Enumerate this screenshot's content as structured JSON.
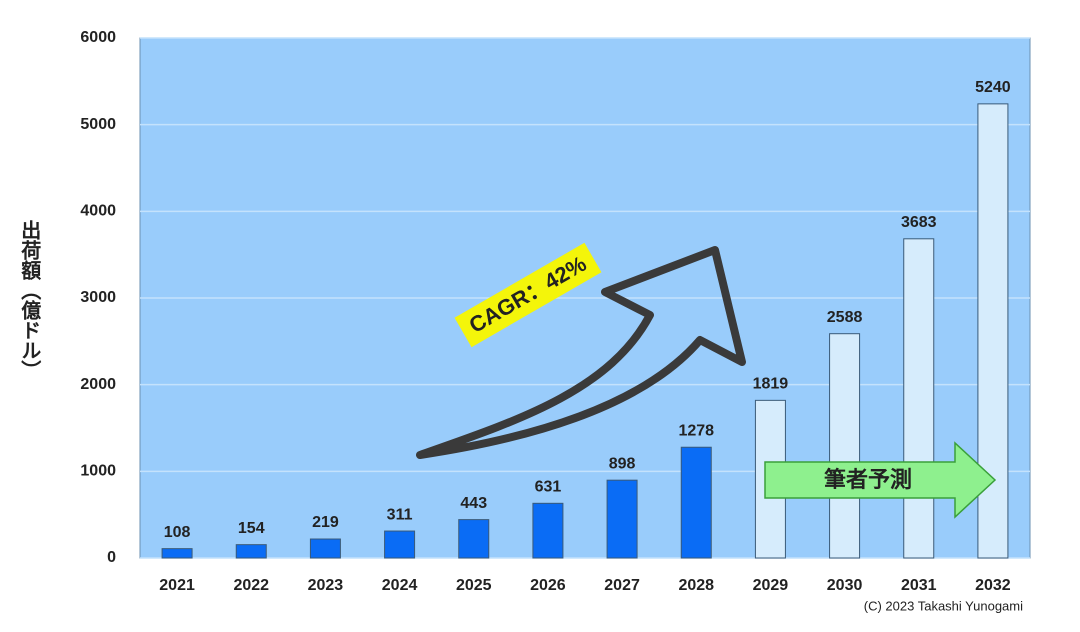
{
  "chart_data": {
    "type": "bar",
    "y_label": "出荷額（億ドル）",
    "categories": [
      "2021",
      "2022",
      "2023",
      "2024",
      "2025",
      "2026",
      "2027",
      "2028",
      "2029",
      "2030",
      "2031",
      "2032"
    ],
    "values": [
      108,
      154,
      219,
      311,
      443,
      631,
      898,
      1278,
      1819,
      2588,
      3683,
      5240
    ],
    "colors": [
      "#0a6cf5",
      "#0a6cf5",
      "#0a6cf5",
      "#0a6cf5",
      "#0a6cf5",
      "#0a6cf5",
      "#0a6cf5",
      "#0a6cf5",
      "#d6ecfc",
      "#d6ecfc",
      "#d6ecfc",
      "#d6ecfc"
    ],
    "ylim": [
      0,
      6000
    ],
    "yticks": [
      0,
      1000,
      2000,
      3000,
      4000,
      5000,
      6000
    ],
    "grid": true,
    "annotations": [
      "CAGR：42%",
      "筆者予測"
    ],
    "credit": "(C)  2023 Takashi Yunogami"
  }
}
